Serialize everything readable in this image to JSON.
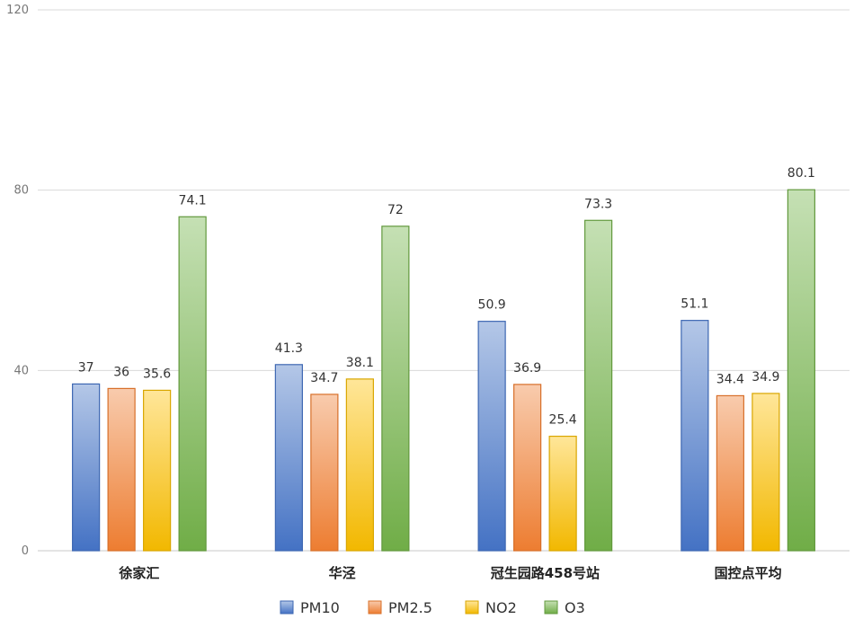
{
  "chart_data": {
    "type": "bar",
    "title": "",
    "xlabel": "",
    "ylabel": "",
    "ylim": [
      0,
      120
    ],
    "yticks": [
      0,
      40,
      80,
      120
    ],
    "grid": true,
    "legend_position": "bottom",
    "categories": [
      "徐家汇",
      "华泾",
      "冠生园路458号站",
      "国控点平均"
    ],
    "series": [
      {
        "name": "PM10",
        "color": "#4472c4",
        "light": "#b4c7e7",
        "edge": "#3d67b2",
        "values": [
          37,
          41.3,
          50.9,
          51.1
        ]
      },
      {
        "name": "PM2.5",
        "color": "#ed7d31",
        "light": "#f8cbad",
        "edge": "#d8702a",
        "values": [
          36,
          34.7,
          36.9,
          34.4
        ]
      },
      {
        "name": "NO2",
        "color": "#f2b800",
        "light": "#ffe699",
        "edge": "#d9a600",
        "values": [
          35.6,
          38.1,
          25.4,
          34.9
        ]
      },
      {
        "name": "O3",
        "color": "#70ad47",
        "light": "#c5e0b4",
        "edge": "#62993d",
        "values": [
          74.1,
          72,
          73.3,
          80.1
        ]
      }
    ]
  }
}
